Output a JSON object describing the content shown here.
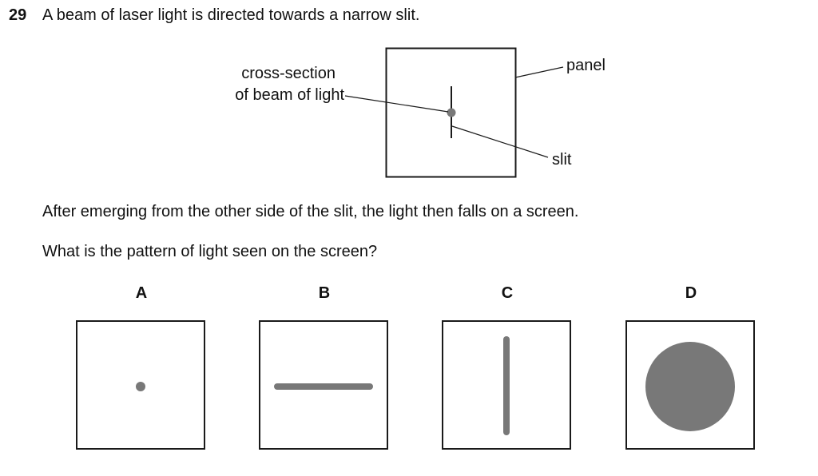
{
  "question": {
    "number": "29",
    "text": "A beam of laser light is directed towards a narrow slit."
  },
  "diagram": {
    "label_cross_section_line1": "cross-section",
    "label_cross_section_line2": "of beam of light",
    "label_panel": "panel",
    "label_slit": "slit"
  },
  "paragraphs": {
    "after": "After emerging from the other side of the slit, the light then falls on a screen.",
    "prompt": "What is the pattern of light seen on the screen?"
  },
  "options": [
    {
      "letter": "A",
      "pattern": "small dot"
    },
    {
      "letter": "B",
      "pattern": "horizontal line"
    },
    {
      "letter": "C",
      "pattern": "vertical line"
    },
    {
      "letter": "D",
      "pattern": "large disc"
    }
  ],
  "colors": {
    "light_pattern": "#787878",
    "line": "#1a1a1a"
  }
}
